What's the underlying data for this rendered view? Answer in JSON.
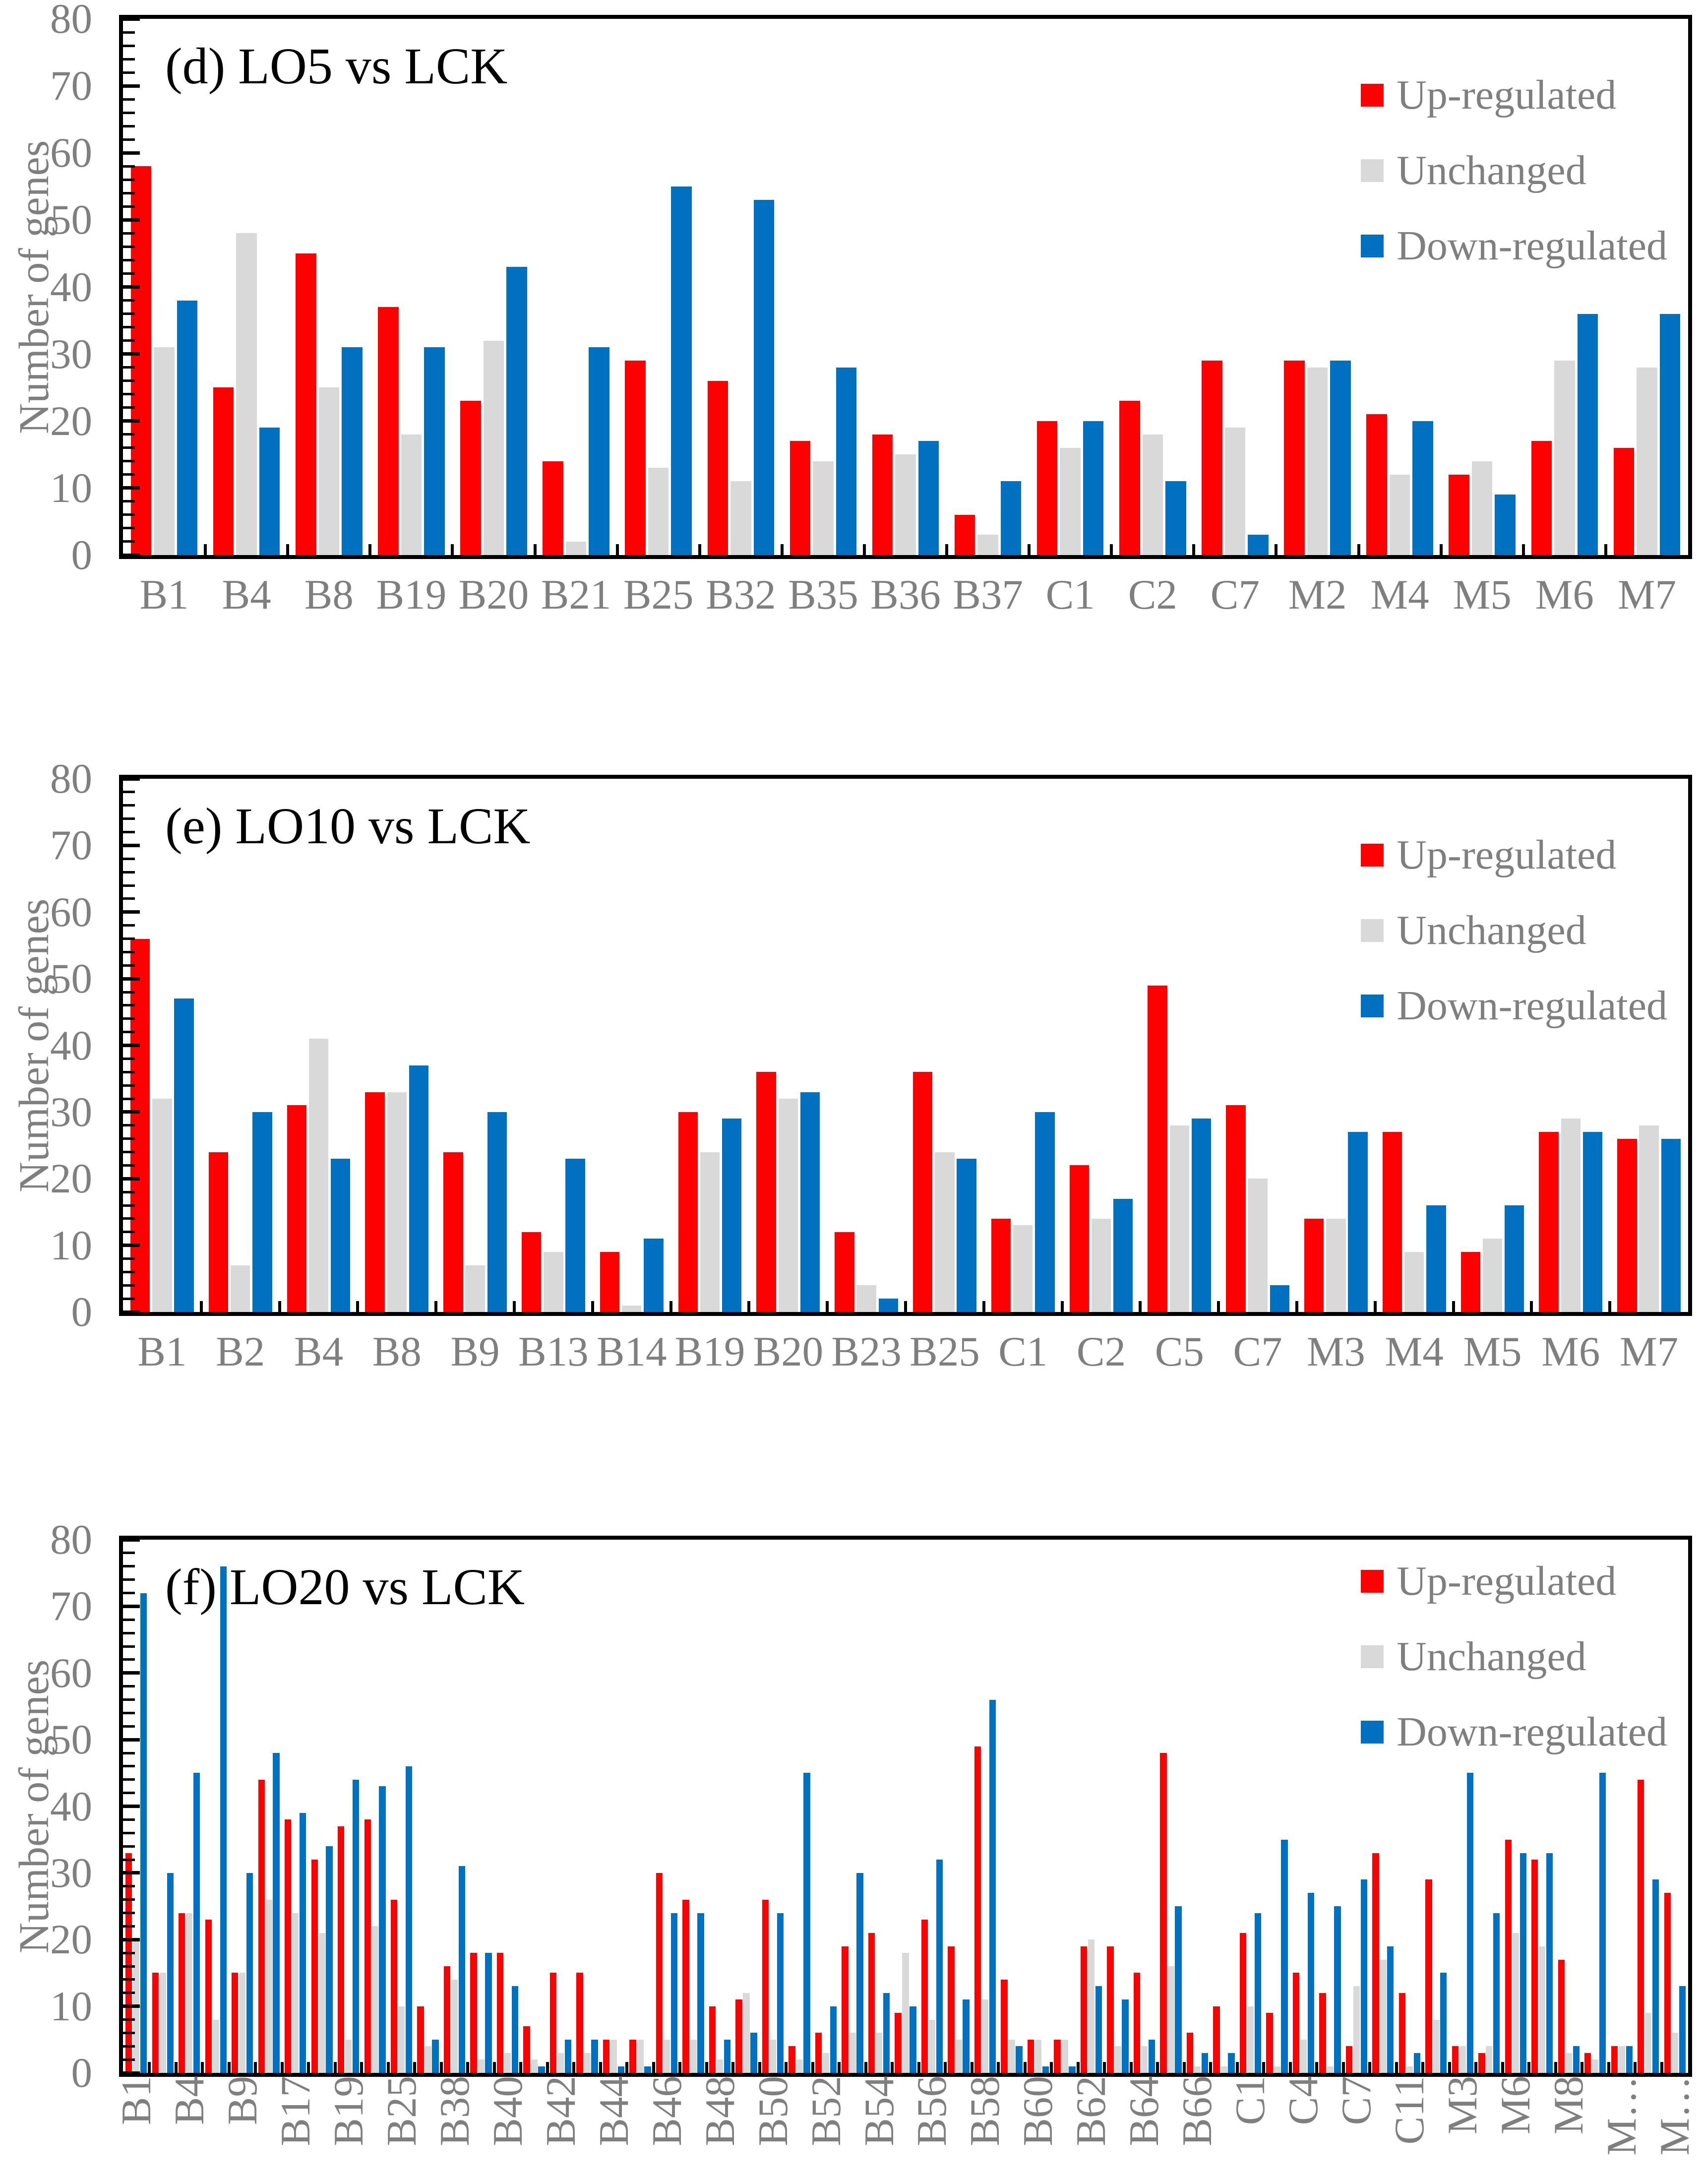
{
  "figure": {
    "background": "#FFFFFF",
    "frame_color": "#000000",
    "axis_text_color": "#7F7F7F",
    "title_text_color": "#000000",
    "accent_colors": {
      "up": "#FF0000",
      "unchanged": "#D9D9D9",
      "down": "#0070C0"
    },
    "legend_labels": [
      "Up-regulated",
      "Unchanged",
      "Down-regulated"
    ]
  },
  "chart_data": [
    {
      "type": "bar",
      "panel": "d",
      "title": "(d) LO5 vs LCK",
      "xlabel": "",
      "ylabel": "Number of genes",
      "ylim": [
        0,
        80
      ],
      "y_ticks": [
        0,
        10,
        20,
        30,
        40,
        50,
        60,
        70,
        80
      ],
      "y_minor_step": 2,
      "grid": false,
      "legend_position": "top-right-inside",
      "x_label_rotation": 0,
      "categories": [
        "B1",
        "B4",
        "B8",
        "B19",
        "B20",
        "B21",
        "B25",
        "B32",
        "B35",
        "B36",
        "B37",
        "C1",
        "C2",
        "C7",
        "M2",
        "M4",
        "M5",
        "M6",
        "M7"
      ],
      "series": [
        {
          "name": "Up-regulated",
          "color": "#FF0000",
          "values": [
            58,
            25,
            45,
            37,
            23,
            14,
            29,
            26,
            17,
            18,
            6,
            20,
            23,
            29,
            29,
            21,
            12,
            17,
            16
          ]
        },
        {
          "name": "Unchanged",
          "color": "#D9D9D9",
          "values": [
            31,
            48,
            25,
            18,
            32,
            2,
            13,
            11,
            14,
            15,
            3,
            16,
            18,
            19,
            28,
            12,
            14,
            29,
            28
          ]
        },
        {
          "name": "Down-regulated",
          "color": "#0070C0",
          "values": [
            38,
            19,
            31,
            31,
            43,
            31,
            55,
            53,
            28,
            17,
            11,
            20,
            11,
            3,
            29,
            20,
            9,
            36,
            36
          ]
        }
      ]
    },
    {
      "type": "bar",
      "panel": "e",
      "title": "(e) LO10 vs LCK",
      "xlabel": "",
      "ylabel": "Number of genes",
      "ylim": [
        0,
        80
      ],
      "y_ticks": [
        0,
        10,
        20,
        30,
        40,
        50,
        60,
        70,
        80
      ],
      "y_minor_step": 2,
      "grid": false,
      "legend_position": "top-right-inside",
      "x_label_rotation": 0,
      "categories": [
        "B1",
        "B2",
        "B4",
        "B8",
        "B9",
        "B13",
        "B14",
        "B19",
        "B20",
        "B23",
        "B25",
        "C1",
        "C2",
        "C5",
        "C7",
        "M3",
        "M4",
        "M5",
        "M6",
        "M7"
      ],
      "series": [
        {
          "name": "Up-regulated",
          "color": "#FF0000",
          "values": [
            56,
            24,
            31,
            33,
            24,
            12,
            9,
            30,
            36,
            12,
            36,
            14,
            22,
            49,
            31,
            14,
            27,
            9,
            27,
            26
          ]
        },
        {
          "name": "Unchanged",
          "color": "#D9D9D9",
          "values": [
            32,
            7,
            41,
            33,
            7,
            9,
            1,
            24,
            32,
            4,
            24,
            13,
            14,
            28,
            20,
            14,
            9,
            11,
            29,
            28
          ]
        },
        {
          "name": "Down-regulated",
          "color": "#0070C0",
          "values": [
            47,
            30,
            23,
            37,
            30,
            23,
            11,
            29,
            33,
            2,
            23,
            30,
            17,
            29,
            4,
            27,
            16,
            16,
            27,
            26
          ]
        }
      ]
    },
    {
      "type": "bar",
      "panel": "f",
      "title": "(f) LO20 vs LCK",
      "xlabel": "",
      "ylabel": "Number of genes",
      "ylim": [
        0,
        80
      ],
      "y_ticks": [
        0,
        10,
        20,
        30,
        40,
        50,
        60,
        70,
        80
      ],
      "y_minor_step": 2,
      "grid": false,
      "legend_position": "top-right-inside",
      "x_label_rotation": 90,
      "categories": [
        "B1",
        "",
        "B4",
        "",
        "B9",
        "",
        "B17",
        "",
        "B19",
        "",
        "B25",
        "",
        "B38",
        "",
        "B40",
        "",
        "B42",
        "",
        "B44",
        "",
        "B46",
        "",
        "B48",
        "",
        "B50",
        "",
        "B52",
        "",
        "B54",
        "",
        "B56",
        "",
        "B58",
        "",
        "B60",
        "",
        "B62",
        "",
        "B64",
        "",
        "B66",
        "",
        "C1",
        "",
        "C4",
        "",
        "C7",
        "",
        "C11",
        "",
        "M3",
        "",
        "M6",
        "",
        "M8",
        "",
        "M…",
        "",
        "M…"
      ],
      "series": [
        {
          "name": "Up-regulated",
          "color": "#FF0000",
          "values": [
            33,
            15,
            24,
            23,
            15,
            44,
            38,
            32,
            37,
            38,
            26,
            10,
            16,
            18,
            18,
            7,
            15,
            15,
            5,
            5,
            30,
            26,
            10,
            11,
            26,
            4,
            6,
            19,
            21,
            9,
            23,
            19,
            49,
            14,
            5,
            5,
            19,
            19,
            15,
            48,
            6,
            10,
            21,
            9,
            15,
            12,
            4,
            33,
            12,
            29,
            4,
            3,
            35,
            32,
            17,
            3,
            4,
            44,
            27
          ]
        },
        {
          "name": "Unchanged",
          "color": "#D9D9D9",
          "values": [
            20,
            15,
            24,
            8,
            15,
            26,
            24,
            21,
            5,
            22,
            10,
            4,
            14,
            2,
            3,
            2,
            3,
            3,
            5,
            5,
            5,
            5,
            2,
            12,
            5,
            2,
            3,
            6,
            6,
            18,
            8,
            5,
            11,
            5,
            5,
            5,
            20,
            4,
            4,
            16,
            1,
            1,
            10,
            1,
            5,
            1,
            13,
            17,
            1,
            8,
            4,
            4,
            21,
            19,
            3,
            2,
            4,
            9,
            6
          ]
        },
        {
          "name": "Down-regulated",
          "color": "#0070C0",
          "values": [
            72,
            30,
            45,
            76,
            30,
            48,
            39,
            34,
            44,
            43,
            46,
            5,
            31,
            18,
            13,
            1,
            5,
            5,
            1,
            1,
            24,
            24,
            5,
            6,
            24,
            45,
            10,
            30,
            12,
            10,
            32,
            11,
            56,
            4,
            1,
            1,
            13,
            11,
            5,
            25,
            3,
            3,
            24,
            35,
            27,
            25,
            29,
            19,
            3,
            15,
            45,
            24,
            33,
            33,
            4,
            45,
            4,
            29,
            13
          ]
        }
      ]
    }
  ]
}
